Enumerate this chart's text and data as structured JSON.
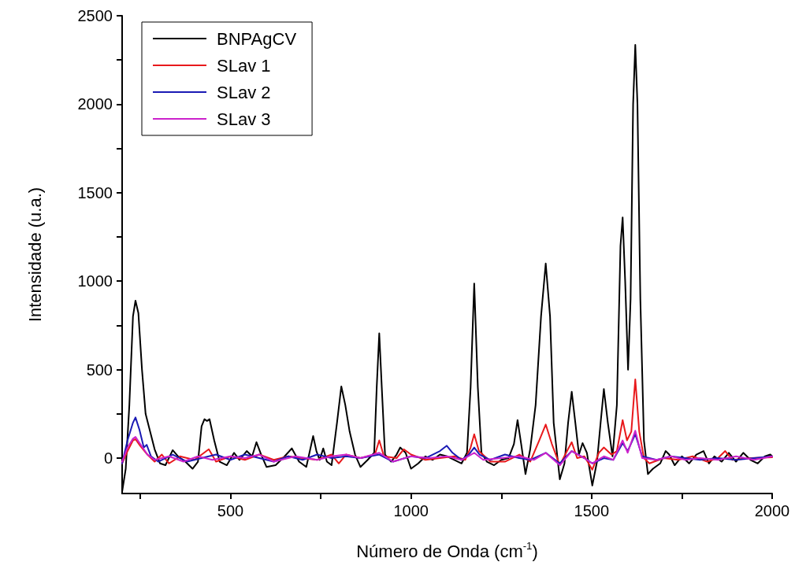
{
  "chart_data": {
    "type": "line",
    "xlabel": "Número de Onda (cm$^{-1}$)",
    "ylabel": "Intensidade (u.a.)",
    "xlim": [
      200,
      2000
    ],
    "xticks": [
      {
        "value": 250,
        "label": null
      },
      500,
      {
        "value": 750,
        "label": null
      },
      1000,
      {
        "value": 1250,
        "label": null
      },
      1500,
      {
        "value": 1750,
        "label": null
      },
      2000
    ],
    "ylim": [
      -200,
      2500
    ],
    "yticks": [
      0,
      {
        "value": 250,
        "label": null
      },
      500,
      {
        "value": 750,
        "label": null
      },
      1000,
      {
        "value": 1250,
        "label": null
      },
      1500,
      {
        "value": 1750,
        "label": null
      },
      2000,
      {
        "value": 2250,
        "label": null
      },
      2500
    ],
    "grid": false,
    "legend": "top left",
    "marker": "none",
    "line_style": "solid",
    "series": [
      {
        "name": "BNPAgCV",
        "color": "#000000",
        "x": [
          200,
          210,
          220,
          230,
          237,
          245,
          255,
          265,
          275,
          290,
          305,
          320,
          340,
          355,
          375,
          395,
          410,
          420,
          428,
          435,
          442,
          455,
          470,
          490,
          510,
          525,
          545,
          560,
          572,
          585,
          600,
          625,
          650,
          670,
          690,
          710,
          722,
          729,
          738,
          747,
          757,
          767,
          780,
          795,
          807,
          818,
          830,
          845,
          860,
          880,
          898,
          905,
          912,
          919,
          928,
          945,
          960,
          970,
          985,
          1000,
          1020,
          1040,
          1060,
          1080,
          1100,
          1120,
          1140,
          1155,
          1165,
          1175,
          1185,
          1195,
          1210,
          1230,
          1250,
          1270,
          1285,
          1295,
          1305,
          1317,
          1330,
          1345,
          1360,
          1373,
          1385,
          1395,
          1412,
          1425,
          1435,
          1445,
          1455,
          1465,
          1475,
          1487,
          1502,
          1515,
          1525,
          1534,
          1545,
          1558,
          1570,
          1580,
          1586,
          1593,
          1601,
          1608,
          1615,
          1621,
          1627,
          1635,
          1645,
          1656,
          1670,
          1690,
          1705,
          1715,
          1730,
          1750,
          1770,
          1790,
          1810,
          1825,
          1840,
          1860,
          1880,
          1900,
          1920,
          1940,
          1960,
          1980,
          1995,
          2000
        ],
        "values": [
          -190,
          -60,
          300,
          800,
          890,
          820,
          500,
          250,
          170,
          50,
          -30,
          -40,
          45,
          10,
          -20,
          -60,
          -20,
          180,
          220,
          210,
          220,
          100,
          -20,
          -40,
          30,
          -10,
          40,
          10,
          90,
          20,
          -50,
          -40,
          10,
          55,
          -20,
          -50,
          60,
          125,
          40,
          -10,
          55,
          -20,
          -40,
          200,
          405,
          300,
          150,
          20,
          -50,
          -10,
          30,
          400,
          705,
          400,
          20,
          -20,
          20,
          60,
          30,
          -60,
          -30,
          10,
          -10,
          20,
          10,
          -10,
          -30,
          30,
          400,
          987,
          400,
          30,
          -20,
          -40,
          -10,
          0,
          80,
          215,
          80,
          -90,
          50,
          300,
          800,
          1100,
          800,
          200,
          -120,
          -30,
          200,
          375,
          200,
          20,
          85,
          30,
          -155,
          -20,
          200,
          390,
          200,
          10,
          300,
          1200,
          1360,
          1000,
          500,
          900,
          2000,
          2335,
          2000,
          900,
          100,
          -90,
          -60,
          -30,
          40,
          20,
          -40,
          10,
          -30,
          20,
          40,
          -30,
          10,
          -20,
          30,
          -20,
          30,
          -10,
          -30,
          10,
          20,
          10
        ]
      },
      {
        "name": "SLav 1",
        "color": "#e8191c",
        "x": [
          200,
          215,
          230,
          237,
          250,
          270,
          290,
          310,
          330,
          360,
          400,
          440,
          460,
          500,
          540,
          580,
          620,
          660,
          700,
          740,
          780,
          800,
          820,
          860,
          900,
          912,
          925,
          960,
          980,
          1000,
          1040,
          1080,
          1120,
          1150,
          1165,
          1175,
          1188,
          1220,
          1260,
          1300,
          1330,
          1355,
          1373,
          1390,
          1412,
          1432,
          1445,
          1460,
          1480,
          1502,
          1520,
          1534,
          1555,
          1570,
          1586,
          1598,
          1610,
          1621,
          1632,
          1645,
          1660,
          1700,
          1740,
          1780,
          1820,
          1850,
          1870,
          1890,
          1940,
          2000
        ],
        "values": [
          -30,
          40,
          100,
          107,
          70,
          20,
          -20,
          20,
          -30,
          10,
          -10,
          50,
          -20,
          10,
          -10,
          20,
          -10,
          10,
          0,
          -10,
          20,
          -30,
          20,
          0,
          20,
          100,
          10,
          0,
          50,
          20,
          -10,
          0,
          10,
          -10,
          60,
          135,
          40,
          -20,
          -20,
          20,
          -20,
          100,
          190,
          80,
          -40,
          40,
          90,
          0,
          10,
          -65,
          30,
          60,
          20,
          40,
          215,
          100,
          150,
          445,
          150,
          0,
          -30,
          0,
          -10,
          10,
          -20,
          0,
          40,
          -10,
          0,
          5
        ]
      },
      {
        "name": "SLav 2",
        "color": "#1a1ab4",
        "x": [
          200,
          215,
          230,
          237,
          248,
          260,
          268,
          280,
          300,
          340,
          380,
          420,
          460,
          500,
          540,
          580,
          620,
          660,
          700,
          740,
          780,
          820,
          860,
          912,
          950,
          1000,
          1040,
          1080,
          1099,
          1115,
          1140,
          1160,
          1175,
          1190,
          1220,
          1260,
          1300,
          1330,
          1373,
          1412,
          1445,
          1480,
          1502,
          1534,
          1560,
          1586,
          1600,
          1621,
          1640,
          1680,
          1720,
          1760,
          1800,
          1850,
          1900,
          1950,
          2000
        ],
        "values": [
          -30,
          100,
          200,
          230,
          160,
          60,
          75,
          10,
          -20,
          20,
          -20,
          0,
          20,
          -10,
          20,
          0,
          -20,
          10,
          -10,
          20,
          0,
          10,
          0,
          20,
          -20,
          10,
          0,
          40,
          70,
          30,
          -10,
          20,
          60,
          20,
          -10,
          20,
          0,
          -10,
          30,
          -30,
          40,
          0,
          -30,
          0,
          -10,
          85,
          40,
          135,
          10,
          -10,
          10,
          0,
          -10,
          0,
          -10,
          0,
          10
        ]
      },
      {
        "name": "SLav 3",
        "color": "#cc22cc",
        "x": [
          200,
          215,
          230,
          237,
          250,
          270,
          290,
          330,
          370,
          410,
          450,
          500,
          540,
          580,
          620,
          680,
          740,
          780,
          820,
          860,
          912,
          950,
          1000,
          1050,
          1100,
          1140,
          1175,
          1200,
          1250,
          1300,
          1340,
          1373,
          1412,
          1445,
          1480,
          1502,
          1534,
          1560,
          1586,
          1600,
          1621,
          1640,
          1680,
          1720,
          1760,
          1800,
          1850,
          1900,
          1950,
          2000
        ],
        "values": [
          -20,
          60,
          110,
          120,
          80,
          20,
          -10,
          10,
          -20,
          10,
          -10,
          10,
          0,
          20,
          -20,
          10,
          -10,
          10,
          20,
          0,
          30,
          -20,
          10,
          0,
          10,
          -10,
          30,
          -10,
          0,
          10,
          -10,
          30,
          -40,
          40,
          0,
          -30,
          10,
          -10,
          100,
          30,
          155,
          0,
          -10,
          10,
          -10,
          0,
          -10,
          10,
          -10,
          10
        ]
      }
    ]
  }
}
